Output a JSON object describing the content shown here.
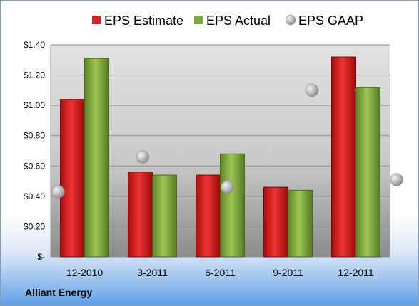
{
  "company": "Alliant Energy",
  "chart_data": {
    "type": "bar",
    "categories": [
      "12-2010",
      "3-2011",
      "6-2011",
      "9-2011",
      "12-2011"
    ],
    "series": [
      {
        "name": "EPS Estimate",
        "type": "bar",
        "color": "#d42222",
        "values": [
          1.04,
          0.56,
          0.54,
          0.46,
          1.32
        ]
      },
      {
        "name": "EPS Actual",
        "type": "bar",
        "color": "#7fa83a",
        "values": [
          1.31,
          0.54,
          0.68,
          0.44,
          1.12
        ]
      },
      {
        "name": "EPS GAAP",
        "type": "marker",
        "color": "#b8b8b8",
        "values": [
          0.43,
          0.66,
          0.46,
          1.1,
          0.51
        ]
      }
    ],
    "ylim": [
      0,
      1.4
    ],
    "yticks": [
      0,
      0.2,
      0.4,
      0.6,
      0.8,
      1.0,
      1.2,
      1.4
    ],
    "ytick_labels": [
      "$-",
      "$0.20",
      "$0.40",
      "$0.60",
      "$0.80",
      "$1.00",
      "$1.20",
      "$1.40"
    ],
    "grid": true,
    "legend_position": "top"
  }
}
